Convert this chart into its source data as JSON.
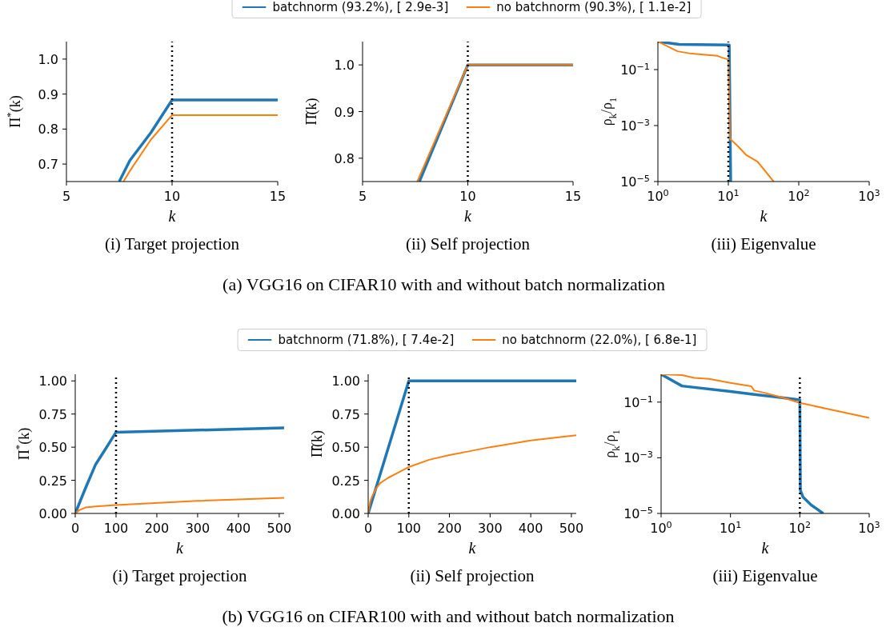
{
  "chart_data": [
    {
      "type": "line",
      "title": "(i) Target projection",
      "xlabel": "k",
      "ylabel": "Π$^{*}$(k)",
      "xlim": [
        5,
        15
      ],
      "xticks": [
        5,
        10,
        15
      ],
      "ylim": [
        0.65,
        1.05
      ],
      "yticks": [
        0.7,
        0.8,
        0.9,
        {
          "value": 1,
          "label": "1.0"
        }
      ],
      "series": [
        {
          "color": "#1f77b4",
          "x": [
            7.5,
            8,
            9,
            10,
            15
          ],
          "values": [
            0.65,
            0.71,
            0.79,
            0.883,
            0.883
          ]
        },
        {
          "color": "#ff7f0e",
          "x": [
            7.7,
            8,
            9,
            10,
            15
          ],
          "values": [
            0.65,
            0.68,
            0.77,
            0.84,
            0.84
          ]
        }
      ],
      "ref_lines": [
        {
          "axis": "x",
          "value": 10,
          "color": "#000000",
          "line_style": "dotted"
        }
      ]
    },
    {
      "type": "line",
      "title": "(ii) Self projection",
      "xlabel": "k",
      "ylabel": "Π̂(k)",
      "xlim": [
        5,
        15
      ],
      "xticks": [
        5,
        10,
        15
      ],
      "ylim": [
        0.75,
        1.05
      ],
      "yticks": [
        0.8,
        0.9,
        {
          "value": 1,
          "label": "1.0"
        }
      ],
      "legend": "top",
      "annotations": [
        "(a) VGG16 on CIFAR10 with and without batch normalization"
      ],
      "series": [
        {
          "name": "batchnorm (93.2%), [ 2.9e-3]",
          "color": "#1f77b4",
          "x": [
            7.7,
            10,
            15
          ],
          "values": [
            0.75,
            1,
            1
          ]
        },
        {
          "name": "no batchnorm (90.3%), [ 1.1e-2]",
          "color": "#ff7f0e",
          "x": [
            7.6,
            10,
            15
          ],
          "values": [
            0.75,
            1,
            1
          ]
        }
      ],
      "ref_lines": [
        {
          "axis": "x",
          "value": 10,
          "color": "#000000",
          "line_style": "dotted"
        }
      ]
    },
    {
      "type": "line",
      "title": "(iii) Eigenvalue",
      "xlabel": "k",
      "ylabel": "ρ$_{k}$/ρ$_{1}$",
      "log": "xy",
      "xlim": [
        1,
        1000
      ],
      "xticks": [
        {
          "value": 1,
          "label": "10$^{0}$"
        },
        {
          "value": 10,
          "label": "10$^{1}$"
        },
        {
          "value": 100,
          "label": "10$^{2}$"
        },
        {
          "value": 1000,
          "label": "10$^{3}$"
        }
      ],
      "ylim": [
        1e-05,
        1
      ],
      "yticks": [
        {
          "value": 0.1,
          "label": "10$^{−1}$"
        },
        {
          "value": 0.001,
          "label": "10$^{−3}$"
        },
        {
          "value": 1e-05,
          "label": "10$^{−5}$"
        }
      ],
      "series": [
        {
          "color": "#1f77b4",
          "x": [
            1,
            2,
            10.3,
            10.8
          ],
          "values": [
            1,
            0.8,
            0.75,
            1e-05
          ]
        },
        {
          "color": "#ff7f0e",
          "x": [
            1,
            1.9,
            3,
            7,
            8,
            10,
            10.6,
            13.5,
            18,
            26,
            44
          ],
          "values": [
            1,
            0.45,
            0.37,
            0.31,
            0.27,
            0.23,
            0.00033,
            0.00019,
            8.8e-05,
            5.1e-05,
            1e-05
          ]
        }
      ],
      "ref_lines": [
        {
          "axis": "x",
          "value": 10,
          "color": "#000000",
          "line_style": "dotted"
        }
      ]
    },
    {
      "type": "line",
      "title": "(i) Target projection",
      "xlabel": "k",
      "ylabel": "Π$^{*}$(k)",
      "xlim": [
        0,
        512
      ],
      "xticks": [
        0,
        100,
        200,
        300,
        400,
        500
      ],
      "ylim": [
        0,
        1.05
      ],
      "yticks": [
        {
          "value": 0,
          "label": "0.00"
        },
        {
          "value": 0.25,
          "label": "0.25"
        },
        {
          "value": 0.5,
          "label": "0.50"
        },
        {
          "value": 0.75,
          "label": "0.75"
        },
        {
          "value": 1,
          "label": "1.00"
        }
      ],
      "series": [
        {
          "color": "#1f77b4",
          "x": [
            0,
            25,
            50,
            75,
            100,
            512
          ],
          "values": [
            0,
            0.19,
            0.37,
            0.49,
            0.613,
            0.645
          ]
        },
        {
          "color": "#ff7f0e",
          "x": [
            0,
            10,
            25,
            50,
            100,
            300,
            512
          ],
          "values": [
            0,
            0.025,
            0.045,
            0.053,
            0.063,
            0.095,
            0.118
          ]
        }
      ],
      "ref_lines": [
        {
          "axis": "x",
          "value": 100,
          "color": "#000000",
          "line_style": "dotted"
        }
      ]
    },
    {
      "type": "line",
      "title": "(ii) Self projection",
      "xlabel": "k",
      "ylabel": "Π̂(k)",
      "xlim": [
        0,
        512
      ],
      "xticks": [
        0,
        100,
        200,
        300,
        400,
        500
      ],
      "ylim": [
        0,
        1.05
      ],
      "yticks": [
        {
          "value": 0,
          "label": "0.00"
        },
        {
          "value": 0.25,
          "label": "0.25"
        },
        {
          "value": 0.5,
          "label": "0.50"
        },
        {
          "value": 0.75,
          "label": "0.75"
        },
        {
          "value": 1,
          "label": "1.00"
        }
      ],
      "legend": "top",
      "annotations": [
        "(b) VGG16 on CIFAR100 with and without batch normalization"
      ],
      "series": [
        {
          "name": "batchnorm (71.8%), [ 7.4e-2]",
          "color": "#1f77b4",
          "x": [
            0,
            100,
            512
          ],
          "values": [
            0,
            1,
            1
          ]
        },
        {
          "name": "no batchnorm (22.0%), [ 6.8e-1]",
          "color": "#ff7f0e",
          "x": [
            0,
            5,
            10,
            20,
            30,
            50,
            75,
            100,
            150,
            200,
            250,
            300,
            400,
            512
          ],
          "values": [
            0,
            0.09,
            0.13,
            0.19,
            0.23,
            0.27,
            0.31,
            0.35,
            0.405,
            0.44,
            0.47,
            0.5,
            0.55,
            0.59
          ]
        }
      ],
      "ref_lines": [
        {
          "axis": "x",
          "value": 100,
          "color": "#000000",
          "line_style": "dotted"
        }
      ]
    },
    {
      "type": "line",
      "title": "(iii) Eigenvalue",
      "xlabel": "k",
      "ylabel": "ρ$_{k}$/ρ$_{1}$",
      "log": "xy",
      "xlim": [
        1,
        1000
      ],
      "xticks": [
        {
          "value": 1,
          "label": "10$^{0}$"
        },
        {
          "value": 10,
          "label": "10$^{1}$"
        },
        {
          "value": 100,
          "label": "10$^{2}$"
        },
        {
          "value": 1000,
          "label": "10$^{3}$"
        }
      ],
      "ylim": [
        1e-05,
        1
      ],
      "yticks": [
        {
          "value": 0.1,
          "label": "10$^{−1}$"
        },
        {
          "value": 0.001,
          "label": "10$^{−3}$"
        },
        {
          "value": 1e-05,
          "label": "10$^{−5}$"
        }
      ],
      "series": [
        {
          "color": "#1f77b4",
          "x": [
            1,
            2,
            10,
            21,
            50,
            100,
            102,
            111,
            146,
            217
          ],
          "values": [
            1,
            0.38,
            0.24,
            0.19,
            0.15,
            0.12,
            6.7e-05,
            3.9e-05,
            2e-05,
            1e-05
          ]
        },
        {
          "color": "#ff7f0e",
          "x": [
            1,
            2,
            3,
            4.9,
            10,
            20,
            22,
            30,
            60,
            100,
            1000
          ],
          "values": [
            1,
            0.94,
            0.74,
            0.68,
            0.49,
            0.37,
            0.26,
            0.22,
            0.14,
            0.094,
            0.027
          ]
        }
      ],
      "ref_lines": [
        {
          "axis": "x",
          "value": 100,
          "color": "#000000",
          "line_style": "dotted"
        }
      ]
    }
  ]
}
